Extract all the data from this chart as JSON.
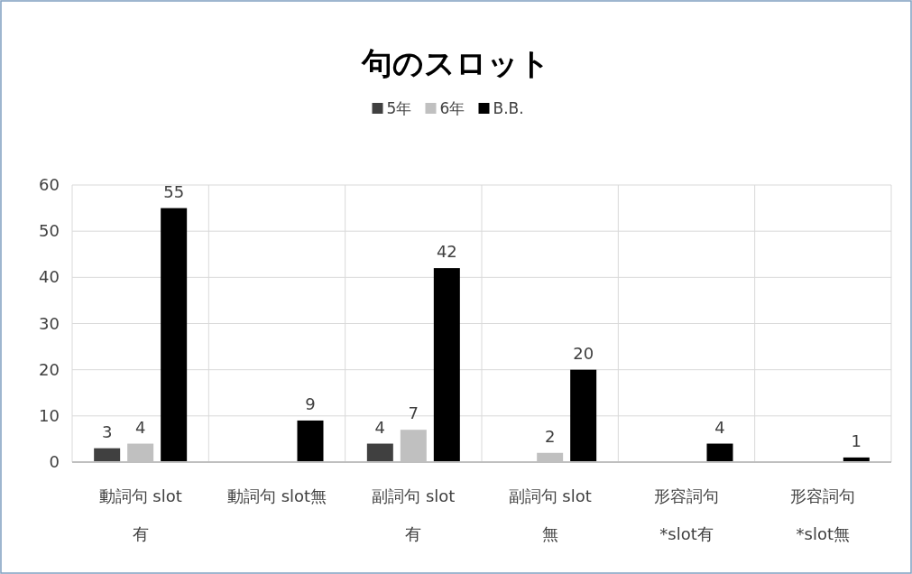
{
  "chart_data": {
    "type": "bar",
    "title": "句のスロット",
    "categories": [
      "動詞句 slot 有",
      "動詞句 slot無",
      "副詞句 slot 有",
      "副詞句 slot 無",
      "形容詞句 *slot有",
      "形容詞句 *slot無"
    ],
    "series": [
      {
        "name": "5年",
        "color": "#404040",
        "values": [
          3,
          0,
          4,
          0,
          0,
          0
        ],
        "value_labels": [
          "3",
          null,
          "4",
          null,
          null,
          null
        ]
      },
      {
        "name": "6年",
        "color": "#c0c0c0",
        "values": [
          4,
          0,
          7,
          2,
          0,
          0
        ],
        "value_labels": [
          "4",
          null,
          "7",
          "2",
          null,
          null
        ]
      },
      {
        "name": "B.B.",
        "color": "#000000",
        "values": [
          55,
          9,
          42,
          20,
          4,
          1
        ],
        "value_labels": [
          "55",
          "9",
          "42",
          "20",
          "4",
          "1"
        ]
      }
    ],
    "ylim": [
      0,
      60
    ],
    "yticks": [
      0,
      10,
      20,
      30,
      40,
      50,
      60
    ],
    "grid": true,
    "legend": "top"
  }
}
